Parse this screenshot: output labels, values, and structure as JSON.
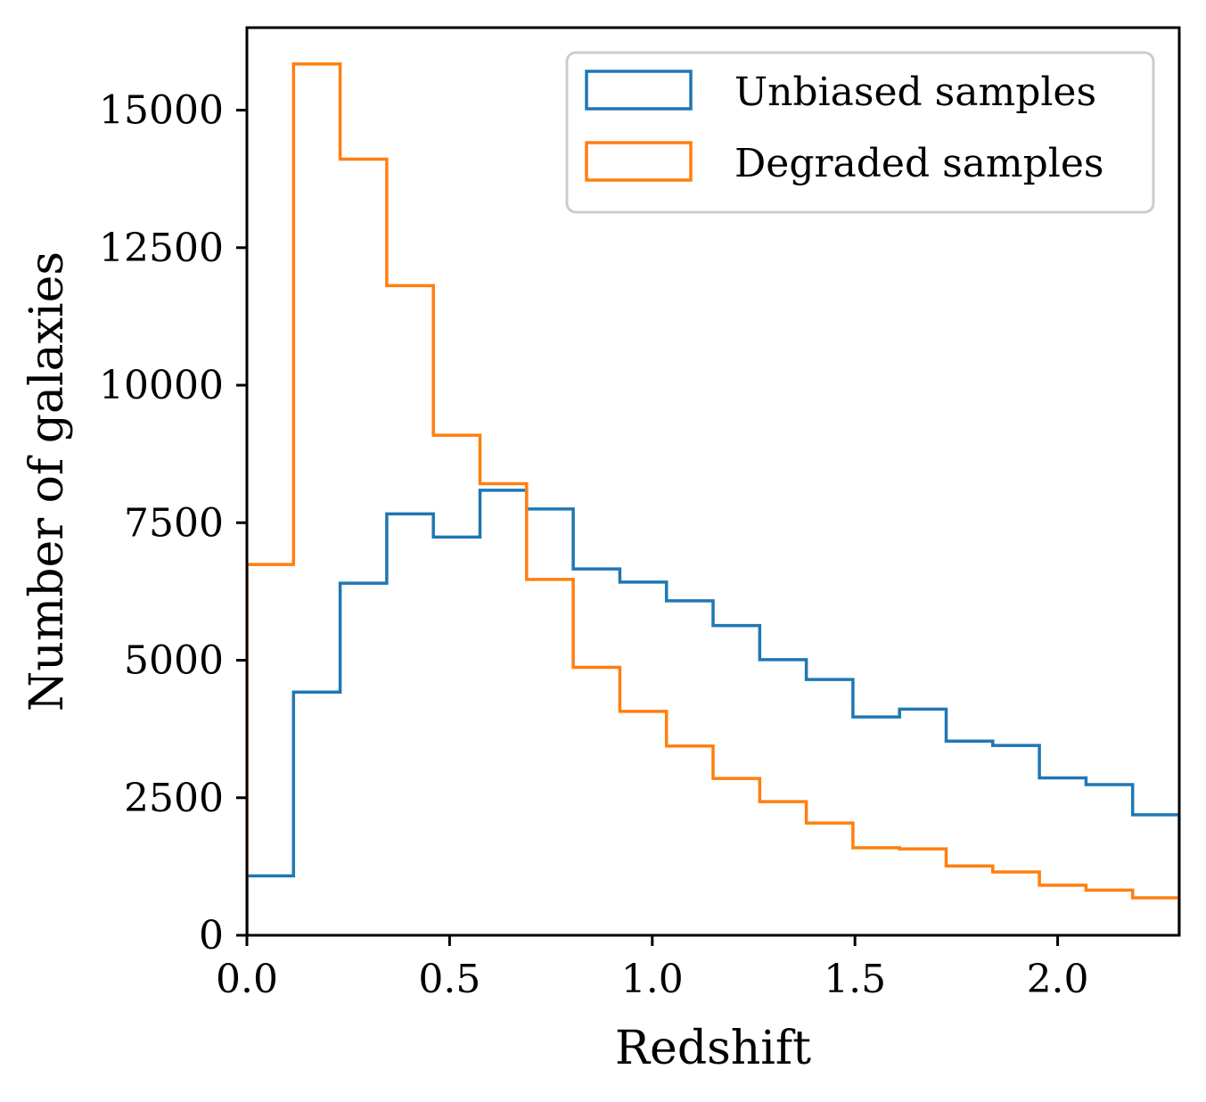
{
  "chart_data": {
    "type": "histogram",
    "title": "",
    "xlabel": "Redshift",
    "ylabel": "Number of galaxies",
    "xlim": [
      0.0,
      2.3
    ],
    "ylim": [
      0,
      16500
    ],
    "grid": false,
    "legend_position": "top-right",
    "x_ticks": [
      {
        "value": 0.0,
        "label": "0.0"
      },
      {
        "value": 0.5,
        "label": "0.5"
      },
      {
        "value": 1.0,
        "label": "1.0"
      },
      {
        "value": 1.5,
        "label": "1.5"
      },
      {
        "value": 2.0,
        "label": "2.0"
      }
    ],
    "y_ticks": [
      {
        "value": 0,
        "label": "0"
      },
      {
        "value": 2500,
        "label": "2500"
      },
      {
        "value": 5000,
        "label": "5000"
      },
      {
        "value": 7500,
        "label": "7500"
      },
      {
        "value": 10000,
        "label": "10000"
      },
      {
        "value": 12500,
        "label": "12500"
      },
      {
        "value": 15000,
        "label": "15000"
      }
    ],
    "bin_edges": [
      0.0,
      0.115,
      0.23,
      0.345,
      0.46,
      0.575,
      0.69,
      0.805,
      0.92,
      1.035,
      1.15,
      1.265,
      1.38,
      1.495,
      1.61,
      1.725,
      1.84,
      1.955,
      2.07,
      2.185,
      2.3
    ],
    "series": [
      {
        "name": "Unbiased samples",
        "color": "#1f77b4",
        "values": [
          1080,
          4420,
          6400,
          7660,
          7240,
          8090,
          7750,
          6660,
          6420,
          6080,
          5630,
          5010,
          4650,
          3970,
          4110,
          3530,
          3450,
          2860,
          2740,
          2190
        ]
      },
      {
        "name": "Degraded samples",
        "color": "#ff7f0e",
        "values": [
          6740,
          15840,
          14110,
          11810,
          9090,
          8210,
          6470,
          4870,
          4070,
          3440,
          2850,
          2430,
          2040,
          1590,
          1570,
          1260,
          1150,
          910,
          820,
          680
        ]
      }
    ]
  }
}
